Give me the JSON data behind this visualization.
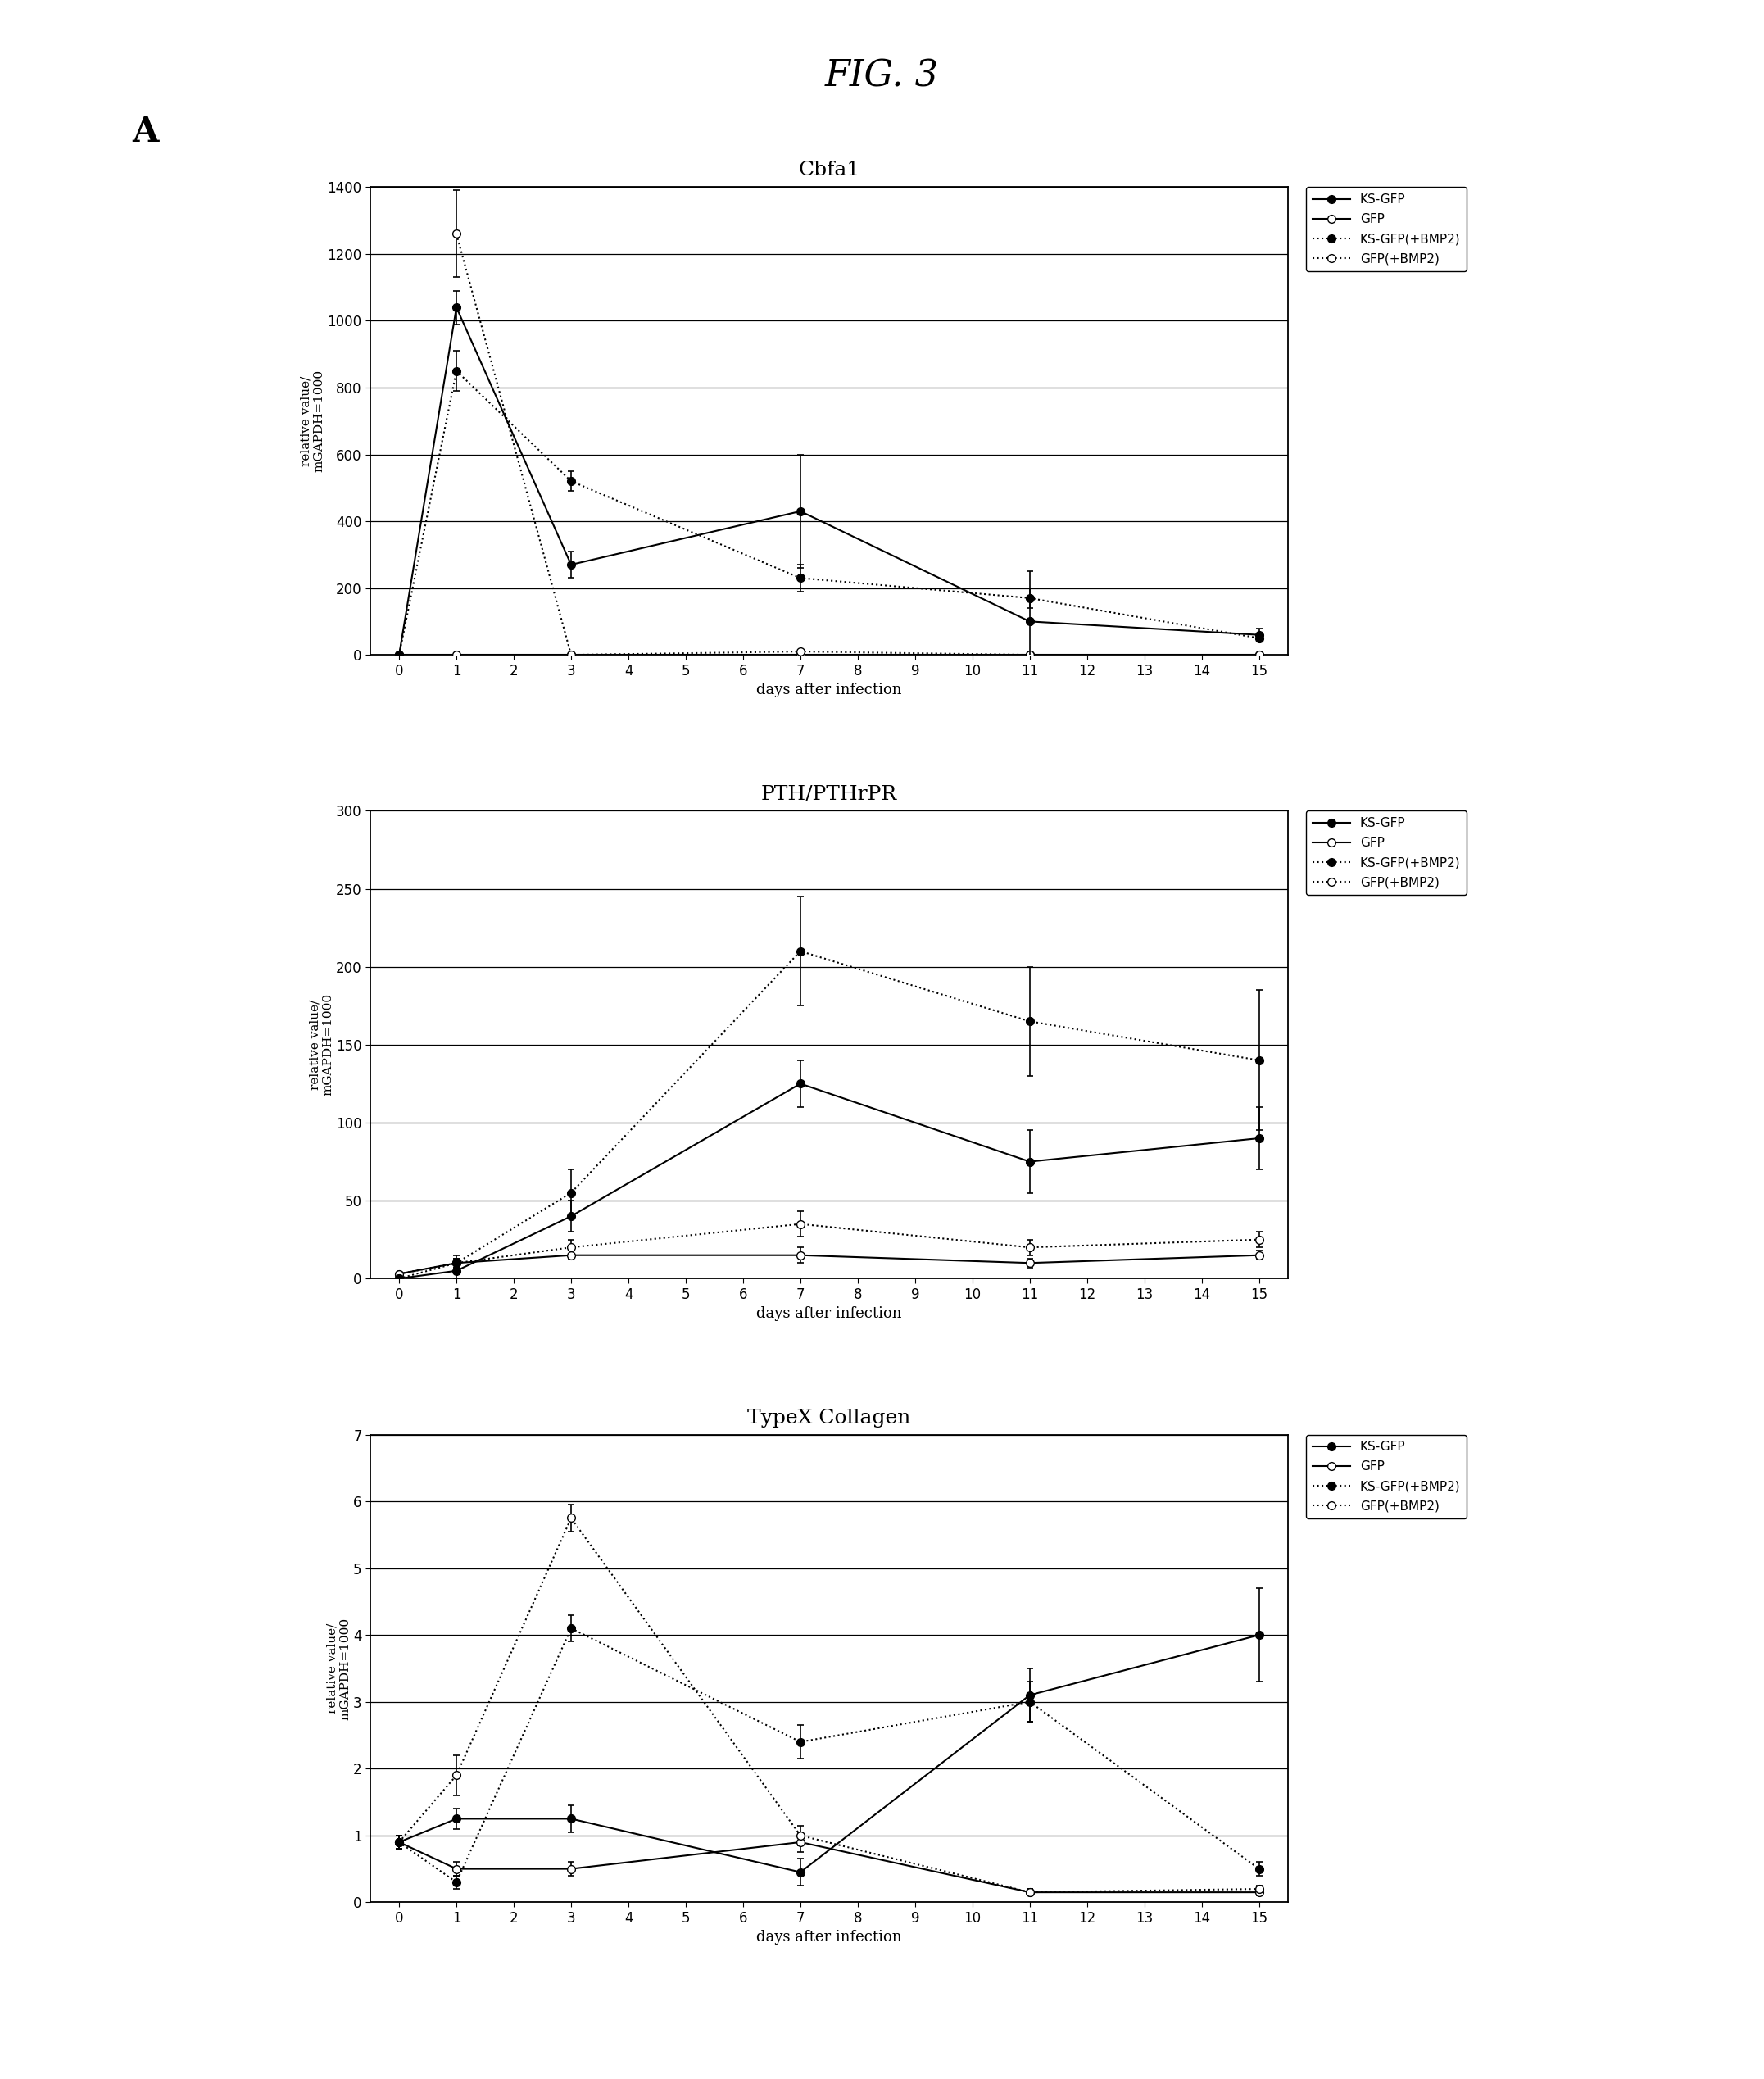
{
  "fig_title": "FIG. 3",
  "panel_label": "A",
  "background_color": "#ffffff",
  "cbfa1": {
    "title": "Cbfa1",
    "ylabel": "relative value/\nmGAPDH=1000",
    "xlabel": "days after infection",
    "xlim": [
      -0.5,
      15.5
    ],
    "ylim": [
      0,
      1400
    ],
    "yticks": [
      0,
      200,
      400,
      600,
      800,
      1000,
      1200,
      1400
    ],
    "xticks": [
      0,
      1,
      2,
      3,
      4,
      5,
      6,
      7,
      8,
      9,
      10,
      11,
      12,
      13,
      14,
      15
    ],
    "ksgfp_x": [
      0,
      1,
      3,
      7,
      11,
      15
    ],
    "ksgfp_y": [
      0,
      1040,
      270,
      430,
      100,
      60
    ],
    "ksgfp_yerr": [
      0,
      50,
      40,
      170,
      150,
      20
    ],
    "gfp_x": [
      0,
      1,
      3,
      7,
      11,
      15
    ],
    "gfp_y": [
      0,
      0,
      0,
      0,
      0,
      0
    ],
    "gfp_yerr": [
      0,
      0,
      0,
      0,
      0,
      0
    ],
    "ksgfp_bmp2_x": [
      0,
      1,
      3,
      7,
      11,
      15
    ],
    "ksgfp_bmp2_y": [
      0,
      850,
      520,
      230,
      170,
      50
    ],
    "ksgfp_bmp2_yerr": [
      0,
      60,
      30,
      40,
      30,
      10
    ],
    "gfp_bmp2_x": [
      1,
      3,
      7,
      11,
      15
    ],
    "gfp_bmp2_y": [
      1260,
      0,
      10,
      0,
      0
    ],
    "gfp_bmp2_yerr": [
      130,
      0,
      5,
      0,
      0
    ]
  },
  "pth": {
    "title": "PTH/PTHrPR",
    "ylabel": "relative value/\nmGAPDH=1000",
    "xlabel": "days after infection",
    "xlim": [
      -0.5,
      15.5
    ],
    "ylim": [
      0,
      300
    ],
    "yticks": [
      0,
      50,
      100,
      150,
      200,
      250,
      300
    ],
    "xticks": [
      0,
      1,
      2,
      3,
      4,
      5,
      6,
      7,
      8,
      9,
      10,
      11,
      12,
      13,
      14,
      15
    ],
    "ksgfp_x": [
      0,
      1,
      3,
      7,
      11,
      15
    ],
    "ksgfp_y": [
      0,
      5,
      40,
      125,
      75,
      90
    ],
    "ksgfp_yerr": [
      0,
      5,
      10,
      15,
      20,
      20
    ],
    "gfp_x": [
      0,
      1,
      3,
      7,
      11,
      15
    ],
    "gfp_y": [
      3,
      10,
      15,
      15,
      10,
      15
    ],
    "gfp_yerr": [
      1,
      3,
      3,
      5,
      3,
      3
    ],
    "ksgfp_bmp2_x": [
      0,
      1,
      3,
      7,
      11,
      15
    ],
    "ksgfp_bmp2_y": [
      0,
      10,
      55,
      210,
      165,
      140
    ],
    "ksgfp_bmp2_yerr": [
      0,
      5,
      15,
      35,
      35,
      45
    ],
    "gfp_bmp2_x": [
      0,
      1,
      3,
      7,
      11,
      15
    ],
    "gfp_bmp2_y": [
      3,
      10,
      20,
      35,
      20,
      25
    ],
    "gfp_bmp2_yerr": [
      1,
      3,
      5,
      8,
      5,
      5
    ]
  },
  "typex": {
    "title": "TypeX Collagen",
    "ylabel": "relative value/\nmGAPDH=1000",
    "xlabel": "days after infection",
    "xlim": [
      -0.5,
      15.5
    ],
    "ylim": [
      0,
      7
    ],
    "yticks": [
      0,
      1,
      2,
      3,
      4,
      5,
      6,
      7
    ],
    "xticks": [
      0,
      1,
      2,
      3,
      4,
      5,
      6,
      7,
      8,
      9,
      10,
      11,
      12,
      13,
      14,
      15
    ],
    "ksgfp_x": [
      0,
      1,
      3,
      7,
      11,
      15
    ],
    "ksgfp_y": [
      0.9,
      1.25,
      1.25,
      0.45,
      3.1,
      4.0
    ],
    "ksgfp_yerr": [
      0.1,
      0.15,
      0.2,
      0.2,
      0.4,
      0.7
    ],
    "gfp_x": [
      0,
      1,
      3,
      7,
      11,
      15
    ],
    "gfp_y": [
      0.9,
      0.5,
      0.5,
      0.9,
      0.15,
      0.15
    ],
    "gfp_yerr": [
      0.1,
      0.1,
      0.1,
      0.15,
      0.05,
      0.05
    ],
    "ksgfp_bmp2_x": [
      0,
      1,
      3,
      7,
      11,
      15
    ],
    "ksgfp_bmp2_y": [
      0.9,
      0.3,
      4.1,
      2.4,
      3.0,
      0.5
    ],
    "ksgfp_bmp2_yerr": [
      0.1,
      0.1,
      0.2,
      0.25,
      0.3,
      0.1
    ],
    "gfp_bmp2_x": [
      0,
      1,
      3,
      7,
      11,
      15
    ],
    "gfp_bmp2_y": [
      0.9,
      1.9,
      5.75,
      1.0,
      0.15,
      0.2
    ],
    "gfp_bmp2_yerr": [
      0.1,
      0.3,
      0.2,
      0.15,
      0.05,
      0.05
    ]
  },
  "legend": {
    "ksgfp_label": "KS-GFP",
    "gfp_label": "GFP",
    "ksgfp_bmp2_label": "KS-GFP(+BMP2)",
    "gfp_bmp2_label": "GFP(+BMP2)"
  }
}
